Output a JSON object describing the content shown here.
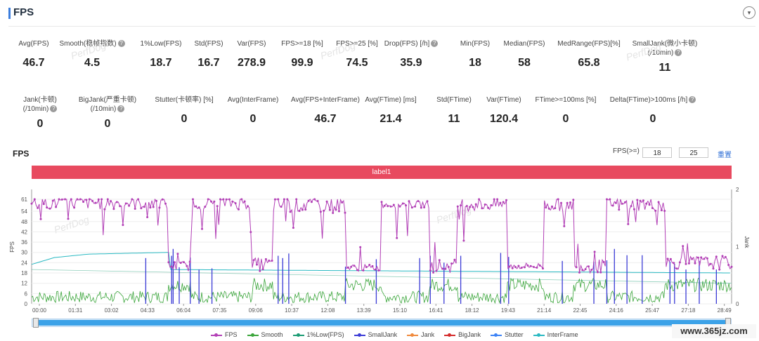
{
  "header": {
    "title": "FPS",
    "collapse_icon": "chevron-down-icon"
  },
  "metrics_row1": [
    {
      "label": "Avg(FPS)",
      "value": "46.7",
      "help": false
    },
    {
      "label": "Smooth(稳帧指数)",
      "value": "4.5",
      "help": true
    },
    {
      "label": "1%Low(FPS)",
      "value": "18.7",
      "help": false
    },
    {
      "label": "Std(FPS)",
      "value": "16.7",
      "help": false
    },
    {
      "label": "Var(FPS)",
      "value": "278.9",
      "help": false
    },
    {
      "label": "FPS>=18 [%]",
      "value": "99.9",
      "help": false
    },
    {
      "label": "FPS>=25 [%]",
      "value": "74.5",
      "help": false
    },
    {
      "label": "Drop(FPS) [/h]",
      "value": "35.9",
      "help": true
    },
    {
      "label": "Min(FPS)",
      "value": "18",
      "help": false
    },
    {
      "label": "Median(FPS)",
      "value": "58",
      "help": false
    },
    {
      "label": "MedRange(FPS)[%]",
      "value": "65.8",
      "help": false
    },
    {
      "label": "SmallJank(微小卡顿)",
      "label2": "(/10min)",
      "value": "11",
      "help": true
    }
  ],
  "metrics_row2": [
    {
      "label": "Jank(卡顿)",
      "label2": "(/10min)",
      "value": "0",
      "help": true
    },
    {
      "label": "BigJank(严重卡顿)",
      "label2": "(/10min)",
      "value": "0",
      "help": true
    },
    {
      "label": "Stutter(卡顿率) [%]",
      "value": "0",
      "help": false
    },
    {
      "label": "Avg(InterFrame)",
      "value": "0",
      "help": false
    },
    {
      "label": "Avg(FPS+InterFrame)",
      "value": "46.7",
      "help": false
    },
    {
      "label": "Avg(FTime) [ms]",
      "value": "21.4",
      "help": false
    },
    {
      "label": "Std(FTime)",
      "value": "11",
      "help": false
    },
    {
      "label": "Var(FTime)",
      "value": "120.4",
      "help": false
    },
    {
      "label": "FTime>=100ms [%]",
      "value": "0",
      "help": false
    },
    {
      "label": "Delta(FTime)>100ms [/h]",
      "value": "0",
      "help": true
    }
  ],
  "watermark": "PerfDog",
  "chart_section": {
    "title": "FPS",
    "threshold_label": "FPS(>=)",
    "threshold_1": "18",
    "threshold_2": "25",
    "reset_label": "重置",
    "band_label": "label1"
  },
  "chart_data": {
    "type": "line",
    "ylabel_left": "FPS",
    "ylabel_right": "Jank",
    "y_ticks_left": [
      "0",
      "6",
      "12",
      "18",
      "24",
      "30",
      "36",
      "42",
      "48",
      "54",
      "61"
    ],
    "y_ticks_right": [
      "0",
      "1",
      "2"
    ],
    "ylim_left": [
      0,
      61
    ],
    "ylim_right": [
      0,
      2
    ],
    "x_ticks": [
      "00:00",
      "01:31",
      "03:02",
      "04:33",
      "06:04",
      "07:35",
      "09:06",
      "10:37",
      "12:08",
      "13:39",
      "15:10",
      "16:41",
      "18:12",
      "19:43",
      "21:14",
      "22:45",
      "24:16",
      "25:47",
      "27:18",
      "28:49"
    ],
    "x_range_seconds": [
      0,
      1840
    ],
    "fps_segments": [
      {
        "start": 0,
        "end": 360,
        "level": 59,
        "noise": 4
      },
      {
        "start": 360,
        "end": 420,
        "level": 22,
        "noise": 3
      },
      {
        "start": 420,
        "end": 580,
        "level": 59,
        "noise": 4
      },
      {
        "start": 580,
        "end": 635,
        "level": 23,
        "noise": 4
      },
      {
        "start": 635,
        "end": 825,
        "level": 58,
        "noise": 5
      },
      {
        "start": 825,
        "end": 920,
        "level": 21,
        "noise": 2
      },
      {
        "start": 920,
        "end": 1045,
        "level": 58,
        "noise": 2
      },
      {
        "start": 1045,
        "end": 1120,
        "level": 22,
        "noise": 4
      },
      {
        "start": 1120,
        "end": 1250,
        "level": 58,
        "noise": 4
      },
      {
        "start": 1250,
        "end": 1345,
        "level": 22,
        "noise": 2
      },
      {
        "start": 1345,
        "end": 1425,
        "level": 58,
        "noise": 4
      },
      {
        "start": 1425,
        "end": 1510,
        "level": 22,
        "noise": 4
      },
      {
        "start": 1510,
        "end": 1665,
        "level": 58,
        "noise": 4
      },
      {
        "start": 1665,
        "end": 1840,
        "level": 24,
        "noise": 4
      }
    ],
    "smooth_level_low": 4,
    "smooth_level_high": 11,
    "one_percent_low": {
      "start": 20,
      "end": 12
    },
    "interframe_curve": [
      [
        0,
        23
      ],
      [
        60,
        27
      ],
      [
        150,
        29
      ],
      [
        360,
        30
      ],
      [
        361,
        20
      ],
      [
        1840,
        18
      ]
    ],
    "small_jank_times": [
      300,
      368,
      372,
      388,
      417,
      440,
      474,
      648,
      660,
      676,
      825,
      906,
      1020,
      1048,
      1084,
      1128,
      1233,
      1254,
      1395,
      1478,
      1512,
      1532,
      1565,
      1605,
      1678,
      1690,
      1720,
      1755,
      1800
    ],
    "big_jank_times": [],
    "jank_times": [],
    "stutter_times": []
  },
  "legend": [
    {
      "name": "FPS",
      "color": "#b23fb6"
    },
    {
      "name": "Smooth",
      "color": "#3aa53a"
    },
    {
      "name": "1%Low(FPS)",
      "color": "#1a9b73"
    },
    {
      "name": "SmallJank",
      "color": "#3b3bd6"
    },
    {
      "name": "Jank",
      "color": "#f08a3c"
    },
    {
      "name": "BigJank",
      "color": "#d42a2a"
    },
    {
      "name": "Stutter",
      "color": "#3b82f6"
    },
    {
      "name": "InterFrame",
      "color": "#29b9c2"
    }
  ],
  "site_badge": "www.365jz.com"
}
